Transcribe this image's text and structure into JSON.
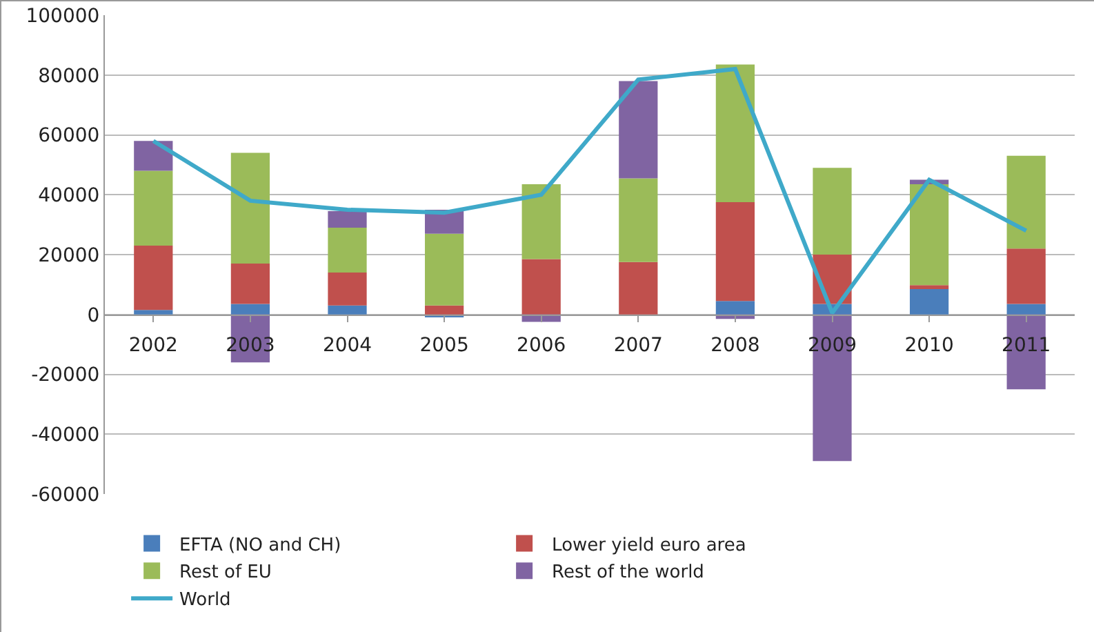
{
  "chart_data": {
    "type": "bar",
    "stacked": true,
    "categories": [
      "2002",
      "2003",
      "2004",
      "2005",
      "2006",
      "2007",
      "2008",
      "2009",
      "2010",
      "2011"
    ],
    "series": [
      {
        "name": "EFTA (NO and CH)",
        "color": "#4a7ebb",
        "values": [
          1500,
          3500,
          3000,
          -1000,
          0,
          0,
          4500,
          3500,
          8500,
          3500
        ]
      },
      {
        "name": "Lower yield euro area",
        "color": "#c0504d",
        "values": [
          21500,
          13500,
          11000,
          3000,
          18500,
          17500,
          33000,
          16500,
          1300,
          18500
        ]
      },
      {
        "name": "Rest of EU",
        "color": "#9bbb59",
        "values": [
          25000,
          37000,
          15000,
          24000,
          25000,
          28000,
          46000,
          29000,
          33700,
          31000
        ]
      },
      {
        "name": "Rest of the world",
        "color": "#8064a2",
        "values": [
          10000,
          -16000,
          5500,
          8000,
          -2500,
          32500,
          -1500,
          -49000,
          1500,
          -25000
        ]
      },
      {
        "name": "World",
        "type": "line",
        "color": "#3fa9c9",
        "values": [
          58000,
          38000,
          35000,
          34000,
          40000,
          78500,
          82000,
          500,
          45000,
          28000
        ]
      }
    ],
    "ylim": [
      -60000,
      100000
    ],
    "yticks": [
      -60000,
      -40000,
      -20000,
      0,
      20000,
      40000,
      60000,
      80000,
      100000
    ],
    "grid": "y",
    "legend": "bottom"
  }
}
